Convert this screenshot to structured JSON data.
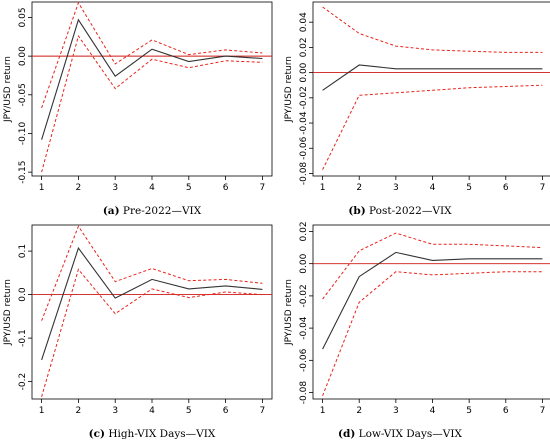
{
  "colors": {
    "response": "#333333",
    "bands": "#e8241c",
    "zero_line": "#cc1a14"
  },
  "chart_data": [
    {
      "type": "line",
      "letter": "(a)",
      "caption": "Pre-2022—VIX",
      "ylabel": "JPY/USD return",
      "x": [
        1,
        2,
        3,
        4,
        5,
        6,
        7
      ],
      "ylim": [
        -0.155,
        0.07
      ],
      "yticks": [
        -0.15,
        -0.1,
        -0.05,
        0.0,
        0.05
      ],
      "ytick_labels": [
        "-0.15",
        "-0.10",
        "-0.05",
        "0.00",
        "0.05"
      ],
      "series": [
        {
          "role": "response",
          "values": [
            -0.108,
            0.047,
            -0.026,
            0.009,
            -0.007,
            0.0,
            -0.003
          ]
        },
        {
          "role": "upper",
          "values": [
            -0.067,
            0.069,
            -0.01,
            0.021,
            0.002,
            0.008,
            0.004
          ]
        },
        {
          "role": "lower",
          "values": [
            -0.15,
            0.026,
            -0.042,
            -0.004,
            -0.015,
            -0.006,
            -0.008
          ]
        }
      ]
    },
    {
      "type": "line",
      "letter": "(b)",
      "caption": "Post-2022—VIX",
      "ylabel": "JPY/USD return",
      "x": [
        1,
        2,
        3,
        4,
        5,
        6,
        7
      ],
      "ylim": [
        -0.082,
        0.056
      ],
      "yticks": [
        -0.08,
        -0.06,
        -0.04,
        -0.02,
        0.0,
        0.02,
        0.04
      ],
      "ytick_labels": [
        "-0.08",
        "-0.06",
        "-0.04",
        "-0.02",
        "0.00",
        "0.02",
        "0.04"
      ],
      "series": [
        {
          "role": "response",
          "values": [
            -0.014,
            0.006,
            0.003,
            0.003,
            0.003,
            0.003,
            0.003
          ]
        },
        {
          "role": "upper",
          "values": [
            0.052,
            0.031,
            0.021,
            0.018,
            0.017,
            0.016,
            0.016
          ]
        },
        {
          "role": "lower",
          "values": [
            -0.077,
            -0.018,
            -0.016,
            -0.014,
            -0.012,
            -0.011,
            -0.01
          ]
        }
      ]
    },
    {
      "type": "line",
      "letter": "(c)",
      "caption": "High-VIX Days—VIX",
      "ylabel": "JPY/USD return",
      "x": [
        1,
        2,
        3,
        4,
        5,
        6,
        7
      ],
      "ylim": [
        -0.24,
        0.16
      ],
      "yticks": [
        -0.2,
        -0.1,
        0.0,
        0.1
      ],
      "ytick_labels": [
        "-0.2",
        "-0.1",
        "0.0",
        "0.1"
      ],
      "series": [
        {
          "role": "response",
          "values": [
            -0.15,
            0.107,
            -0.008,
            0.035,
            0.013,
            0.02,
            0.012
          ]
        },
        {
          "role": "upper",
          "values": [
            -0.06,
            0.157,
            0.03,
            0.06,
            0.032,
            0.035,
            0.026
          ]
        },
        {
          "role": "lower",
          "values": [
            -0.235,
            0.058,
            -0.044,
            0.013,
            -0.007,
            0.006,
            0.0
          ]
        }
      ]
    },
    {
      "type": "line",
      "letter": "(d)",
      "caption": "Low-VIX Days—VIX",
      "ylabel": "JPY/USD return",
      "x": [
        1,
        2,
        3,
        4,
        5,
        6,
        7
      ],
      "ylim": [
        -0.084,
        0.024
      ],
      "yticks": [
        -0.08,
        -0.06,
        -0.04,
        -0.02,
        0.0,
        0.02
      ],
      "ytick_labels": [
        "-0.08",
        "-0.06",
        "-0.04",
        "-0.02",
        "0.00",
        "0.02"
      ],
      "series": [
        {
          "role": "response",
          "values": [
            -0.053,
            -0.008,
            0.007,
            0.002,
            0.003,
            0.003,
            0.003
          ]
        },
        {
          "role": "upper",
          "values": [
            -0.022,
            0.008,
            0.019,
            0.012,
            0.012,
            0.011,
            0.01
          ]
        },
        {
          "role": "lower",
          "values": [
            -0.082,
            -0.024,
            -0.005,
            -0.007,
            -0.006,
            -0.005,
            -0.005
          ]
        }
      ]
    }
  ]
}
